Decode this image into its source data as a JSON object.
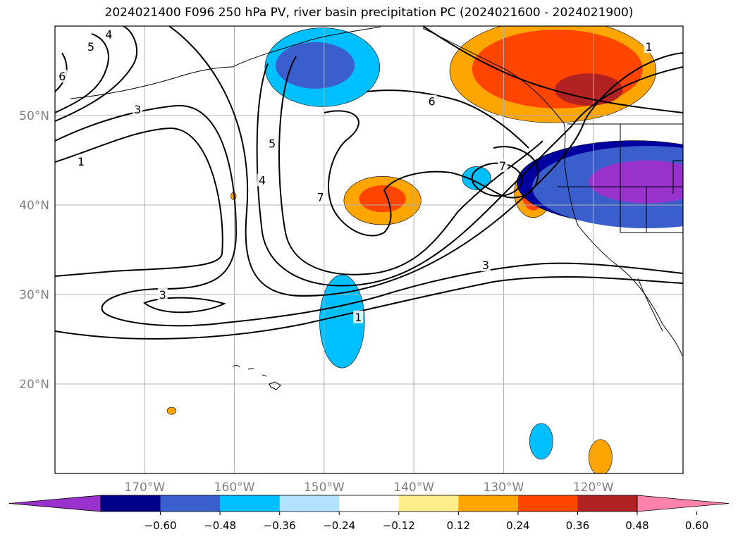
{
  "chart_data": {
    "type": "contour-map",
    "title": "2024021400 F096 250 hPa PV, river basin precipitation PC (2024021600 - 2024021900)",
    "projection": "lat-lon",
    "extent": {
      "lon": [
        -180,
        -110
      ],
      "lat": [
        10,
        60
      ]
    },
    "lat_ticks": [
      {
        "value": 50,
        "label": "50°N"
      },
      {
        "value": 40,
        "label": "40°N"
      },
      {
        "value": 30,
        "label": "30°N"
      },
      {
        "value": 20,
        "label": "20°N"
      }
    ],
    "lon_ticks": [
      {
        "value": -170,
        "label": "170°W"
      },
      {
        "value": -160,
        "label": "160°W"
      },
      {
        "value": -150,
        "label": "150°W"
      },
      {
        "value": -140,
        "label": "140°W"
      },
      {
        "value": -130,
        "label": "130°W"
      },
      {
        "value": -120,
        "label": "120°W"
      }
    ],
    "grid": true,
    "colorbar": {
      "position": "bottom",
      "extend": "both",
      "colors": [
        "#9932cc",
        "#00008b",
        "#3a5fcd",
        "#00bfff",
        "#b0e2ff",
        "#ffffff",
        "#ffec8b",
        "#ffa500",
        "#ff4500",
        "#b22222",
        "#ff82ab"
      ],
      "ticks": [
        "−0.60",
        "−0.48",
        "−0.36",
        "−0.24",
        "−0.12",
        "0.12",
        "0.24",
        "0.36",
        "0.48",
        "0.60"
      ]
    },
    "shaded_field": {
      "name": "river basin precipitation PC",
      "blobs": [
        {
          "levels": [
            {
              "color": "#00bfff",
              "lon": -150.2,
              "lat": 55.4,
              "rx": 6.4,
              "ry": 4.4
            },
            {
              "color": "#3a5fcd",
              "lon": -151.0,
              "lat": 55.6,
              "rx": 4.4,
              "ry": 2.6
            }
          ]
        },
        {
          "levels": [
            {
              "color": "#ffa500",
              "lon": -124.5,
              "lat": 55.0,
              "rx": 11.5,
              "ry": 5.8
            },
            {
              "color": "#ff4500",
              "lon": -124.0,
              "lat": 55.2,
              "rx": 9.5,
              "ry": 4.4
            },
            {
              "color": "#b22222",
              "lon": -120.5,
              "lat": 52.9,
              "rx": 3.8,
              "ry": 1.8
            }
          ]
        },
        {
          "levels": [
            {
              "color": "#ffa500",
              "lon": -143.5,
              "lat": 40.5,
              "rx": 4.3,
              "ry": 2.7
            },
            {
              "color": "#ff4500",
              "lon": -143.5,
              "lat": 40.7,
              "rx": 2.6,
              "ry": 1.5
            }
          ]
        },
        {
          "levels": [
            {
              "color": "#00bfff",
              "lon": -133.0,
              "lat": 43.0,
              "rx": 1.6,
              "ry": 1.3
            }
          ]
        },
        {
          "levels": [
            {
              "color": "#ffa500",
              "lon": -126.7,
              "lat": 41.4,
              "rx": 2.1,
              "ry": 2.8
            },
            {
              "color": "#ff4500",
              "lon": -126.7,
              "lat": 41.4,
              "rx": 1.3,
              "ry": 2.0
            }
          ]
        },
        {
          "levels": [
            {
              "color": "#0000a0",
              "lon": -115.5,
              "lat": 42.5,
              "rx": 13.0,
              "ry": 4.7
            },
            {
              "color": "#3a5fcd",
              "lon": -114.0,
              "lat": 42.0,
              "rx": 12.8,
              "ry": 4.6
            },
            {
              "color": "#9932cc",
              "lon": -114.0,
              "lat": 42.6,
              "rx": 6.5,
              "ry": 2.4
            }
          ]
        },
        {
          "levels": [
            {
              "color": "#00bfff",
              "lon": -148.0,
              "lat": 27.0,
              "rx": 2.5,
              "ry": 5.2
            }
          ]
        },
        {
          "levels": [
            {
              "color": "#00bfff",
              "lon": -125.8,
              "lat": 13.6,
              "rx": 1.3,
              "ry": 2.0
            }
          ]
        },
        {
          "levels": [
            {
              "color": "#ffa500",
              "lon": -119.2,
              "lat": 11.8,
              "rx": 1.3,
              "ry": 2.0
            }
          ]
        },
        {
          "levels": [
            {
              "color": "#ffa500",
              "lon": -160.1,
              "lat": 41.0,
              "rx": 0.3,
              "ry": 0.4
            }
          ]
        },
        {
          "levels": [
            {
              "color": "#ffa500",
              "lon": -167.0,
              "lat": 17.0,
              "rx": 0.5,
              "ry": 0.4
            }
          ]
        }
      ]
    },
    "contour_field": {
      "name": "250 hPa PV",
      "labels": [
        {
          "text": "5",
          "lon": -176.0,
          "lat": 57.7
        },
        {
          "text": "4",
          "lon": -174.0,
          "lat": 59.1
        },
        {
          "text": "6",
          "lon": -179.2,
          "lat": 54.4
        },
        {
          "text": "3",
          "lon": -170.8,
          "lat": 50.7
        },
        {
          "text": "1",
          "lon": -177.1,
          "lat": 44.9
        },
        {
          "text": "5",
          "lon": -155.8,
          "lat": 46.9
        },
        {
          "text": "4",
          "lon": -156.9,
          "lat": 42.8
        },
        {
          "text": "7",
          "lon": -150.4,
          "lat": 40.9
        },
        {
          "text": "6",
          "lon": -138.0,
          "lat": 51.6
        },
        {
          "text": "7",
          "lon": -130.1,
          "lat": 44.4
        },
        {
          "text": "3",
          "lon": -132.0,
          "lat": 33.3
        },
        {
          "text": "3",
          "lon": -168.0,
          "lat": 30.0
        },
        {
          "text": "1",
          "lon": -146.2,
          "lat": 27.5
        },
        {
          "text": "1",
          "lon": -113.8,
          "lat": 57.7
        }
      ]
    }
  }
}
